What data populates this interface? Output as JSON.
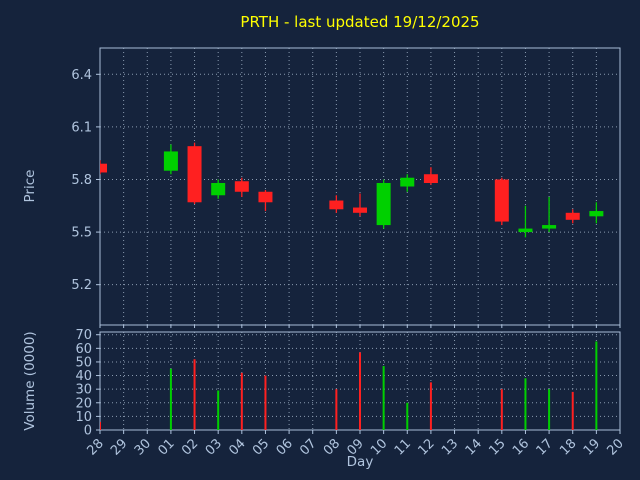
{
  "chart_data": {
    "type": "candlestick",
    "title": "PRTH - last updated 19/12/2025",
    "xlabel": "Day",
    "price_ylabel": "Price",
    "volume_ylabel": "Volume (0000)",
    "categories": [
      "28",
      "29",
      "30",
      "01",
      "02",
      "03",
      "04",
      "05",
      "06",
      "07",
      "08",
      "09",
      "10",
      "11",
      "12",
      "13",
      "14",
      "15",
      "16",
      "17",
      "18",
      "19",
      "20"
    ],
    "price_ticks": [
      5.2,
      5.5,
      5.8,
      6.1,
      6.4
    ],
    "price_ylim": [
      4.97,
      6.55
    ],
    "volume_ticks": [
      0,
      10,
      20,
      30,
      40,
      50,
      60,
      70
    ],
    "volume_ylim": [
      0,
      72
    ],
    "up_color": "#00d000",
    "down_color": "#ff2020",
    "background_color": "#15233c",
    "title_color": "#ffff00",
    "tick_label_color": "#b0c4de",
    "grid_on": true,
    "legend": "none",
    "candles": [
      {
        "day": "28",
        "open": 5.89,
        "high": 5.91,
        "low": 5.83,
        "close": 5.84,
        "volume": 6
      },
      {
        "day": "01",
        "open": 5.85,
        "high": 6.0,
        "low": 5.83,
        "close": 5.96,
        "volume": 45
      },
      {
        "day": "02",
        "open": 5.99,
        "high": 6.01,
        "low": 5.66,
        "close": 5.67,
        "volume": 52
      },
      {
        "day": "03",
        "open": 5.71,
        "high": 5.8,
        "low": 5.69,
        "close": 5.78,
        "volume": 29
      },
      {
        "day": "04",
        "open": 5.79,
        "high": 5.81,
        "low": 5.7,
        "close": 5.73,
        "volume": 42
      },
      {
        "day": "05",
        "open": 5.73,
        "high": 5.74,
        "low": 5.62,
        "close": 5.67,
        "volume": 40
      },
      {
        "day": "08",
        "open": 5.68,
        "high": 5.71,
        "low": 5.61,
        "close": 5.63,
        "volume": 30
      },
      {
        "day": "09",
        "open": 5.64,
        "high": 5.72,
        "low": 5.59,
        "close": 5.61,
        "volume": 57
      },
      {
        "day": "10",
        "open": 5.54,
        "high": 5.8,
        "low": 5.52,
        "close": 5.78,
        "volume": 47
      },
      {
        "day": "11",
        "open": 5.76,
        "high": 5.83,
        "low": 5.73,
        "close": 5.81,
        "volume": 20
      },
      {
        "day": "12",
        "open": 5.83,
        "high": 5.87,
        "low": 5.77,
        "close": 5.78,
        "volume": 35
      },
      {
        "day": "15",
        "open": 5.8,
        "high": 5.81,
        "low": 5.54,
        "close": 5.56,
        "volume": 30
      },
      {
        "day": "16",
        "open": 5.5,
        "high": 5.65,
        "low": 5.47,
        "close": 5.52,
        "volume": 38
      },
      {
        "day": "17",
        "open": 5.52,
        "high": 5.7,
        "low": 5.5,
        "close": 5.54,
        "volume": 30
      },
      {
        "day": "18",
        "open": 5.61,
        "high": 5.63,
        "low": 5.55,
        "close": 5.57,
        "volume": 28
      },
      {
        "day": "19",
        "open": 5.59,
        "high": 5.67,
        "low": 5.55,
        "close": 5.62,
        "volume": 65
      }
    ]
  }
}
